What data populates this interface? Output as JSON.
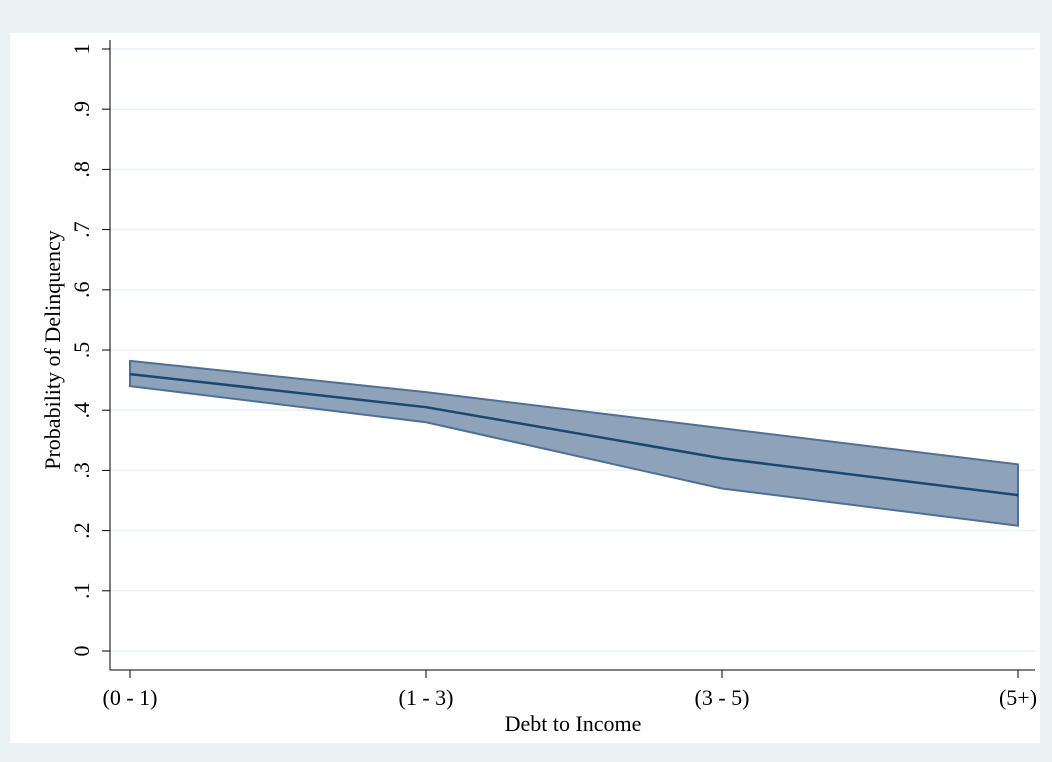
{
  "chart_data": {
    "type": "line_band",
    "x_label": "Debt to Income",
    "y_label": "Probability of Delinquency",
    "categories": [
      "(0 - 1)",
      "(1 - 3)",
      "(3 - 5)",
      "(5+)"
    ],
    "values": [
      0.46,
      0.405,
      0.32,
      0.259
    ],
    "upper": [
      0.482,
      0.43,
      0.37,
      0.31
    ],
    "lower": [
      0.44,
      0.38,
      0.27,
      0.208
    ],
    "color": "#1a476f",
    "band_color": "#8ea3b9",
    "band_edge": "#4f7094",
    "ylim": [
      0,
      1
    ],
    "yticks": [
      0,
      {
        "value": 0.1,
        "label": ".1"
      },
      {
        "value": 0.2,
        "label": ".2"
      },
      {
        "value": 0.3,
        "label": ".3"
      },
      {
        "value": 0.4,
        "label": ".4"
      },
      {
        "value": 0.5,
        "label": ".5"
      },
      {
        "value": 0.6,
        "label": ".6"
      },
      {
        "value": 0.7,
        "label": ".7"
      },
      {
        "value": 0.8,
        "label": ".8"
      },
      {
        "value": 0.9,
        "label": ".9"
      },
      1
    ],
    "grid": true
  }
}
